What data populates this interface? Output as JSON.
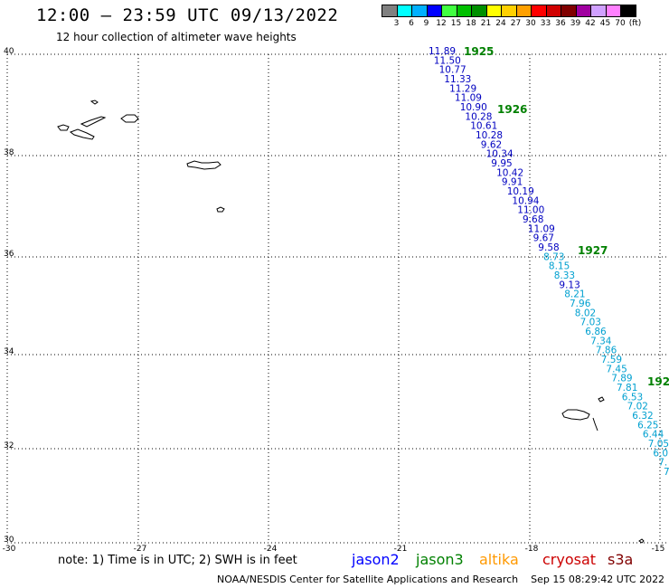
{
  "header": {
    "title": "12:00 – 23:59 UTC 09/13/2022",
    "subtitle": "12 hour collection of altimeter wave heights"
  },
  "colorbar": {
    "colors": [
      "#808080",
      "#00ffff",
      "#00b0ff",
      "#0000ff",
      "#40ff40",
      "#00c000",
      "#009000",
      "#ffff00",
      "#ffd000",
      "#ffa000",
      "#ff0000",
      "#d00000",
      "#800000",
      "#a000a0",
      "#d0a0ff",
      "#ff80ff",
      "#000000"
    ],
    "labels": [
      "3",
      "6",
      "9",
      "12",
      "15",
      "18",
      "21",
      "24",
      "27",
      "30",
      "33",
      "36",
      "39",
      "42",
      "45",
      "70",
      "(ft)"
    ]
  },
  "axes": {
    "y_labels": [
      "40",
      "38",
      "36",
      "34",
      "32",
      "30"
    ],
    "x_labels": [
      "-30",
      "-27",
      "-24",
      "-21",
      "-18",
      "-15"
    ]
  },
  "passes": [
    {
      "label": "1925",
      "color": "#008000"
    },
    {
      "label": "1926",
      "color": "#008000"
    },
    {
      "label": "1927",
      "color": "#008000"
    },
    {
      "label": "192",
      "color": "#008000"
    }
  ],
  "track": [
    {
      "v": "11.89",
      "c": "#0000c0"
    },
    {
      "v": "11.50",
      "c": "#0000c0"
    },
    {
      "v": "10.77",
      "c": "#0000c0"
    },
    {
      "v": "11.33",
      "c": "#0000c0"
    },
    {
      "v": "11.29",
      "c": "#0000c0"
    },
    {
      "v": "11.09",
      "c": "#0000c0"
    },
    {
      "v": "10.90",
      "c": "#0000c0"
    },
    {
      "v": "10.28",
      "c": "#0000c0"
    },
    {
      "v": "10.61",
      "c": "#0000c0"
    },
    {
      "v": "10.28",
      "c": "#0000c0"
    },
    {
      "v": "9.62",
      "c": "#0000c0"
    },
    {
      "v": "10.34",
      "c": "#0000c0"
    },
    {
      "v": "9.95",
      "c": "#0000c0"
    },
    {
      "v": "10.42",
      "c": "#0000c0"
    },
    {
      "v": "9.91",
      "c": "#0000c0"
    },
    {
      "v": "10.19",
      "c": "#0000c0"
    },
    {
      "v": "10.94",
      "c": "#0000c0"
    },
    {
      "v": "11.00",
      "c": "#0000c0"
    },
    {
      "v": "9.68",
      "c": "#0000c0"
    },
    {
      "v": "11.09",
      "c": "#0000c0"
    },
    {
      "v": "9.67",
      "c": "#0000c0"
    },
    {
      "v": "9.58",
      "c": "#0000c0"
    },
    {
      "v": "8.73",
      "c": "#00a0d0"
    },
    {
      "v": "8.15",
      "c": "#00a0d0"
    },
    {
      "v": "8.33",
      "c": "#00a0d0"
    },
    {
      "v": "9.13",
      "c": "#0000c0"
    },
    {
      "v": "8.21",
      "c": "#00a0d0"
    },
    {
      "v": "7.96",
      "c": "#00a0d0"
    },
    {
      "v": "8.02",
      "c": "#00a0d0"
    },
    {
      "v": "7.03",
      "c": "#00a0d0"
    },
    {
      "v": "6.86",
      "c": "#00a0d0"
    },
    {
      "v": "7.34",
      "c": "#00a0d0"
    },
    {
      "v": "7.86",
      "c": "#00a0d0"
    },
    {
      "v": "7.59",
      "c": "#00a0d0"
    },
    {
      "v": "7.45",
      "c": "#00a0d0"
    },
    {
      "v": "7.89",
      "c": "#00a0d0"
    },
    {
      "v": "7.81",
      "c": "#00a0d0"
    },
    {
      "v": "6.53",
      "c": "#00a0d0"
    },
    {
      "v": "7.02",
      "c": "#00a0d0"
    },
    {
      "v": "6.32",
      "c": "#00a0d0"
    },
    {
      "v": "6.25",
      "c": "#00a0d0"
    },
    {
      "v": "6.44",
      "c": "#00a0d0"
    },
    {
      "v": "7.05",
      "c": "#00a0d0"
    },
    {
      "v": "6.0",
      "c": "#00a0d0"
    },
    {
      "v": "7.",
      "c": "#00a0d0"
    },
    {
      "v": "7.",
      "c": "#00a0d0"
    }
  ],
  "note": "note: 1) Time is in UTC; 2) SWH is in feet",
  "satellites": [
    {
      "name": "jason2",
      "color": "#0000ff"
    },
    {
      "name": "jason3",
      "color": "#008000"
    },
    {
      "name": "altika",
      "color": "#ff9900"
    },
    {
      "name": "cryosat",
      "color": "#cc0000"
    },
    {
      "name": "s3a",
      "color": "#800000"
    }
  ],
  "footer": {
    "credit": "NOAA/NESDIS Center for Satellite Applications and Research",
    "timestamp": "Sep 15 08:29:42 UTC 2022"
  }
}
